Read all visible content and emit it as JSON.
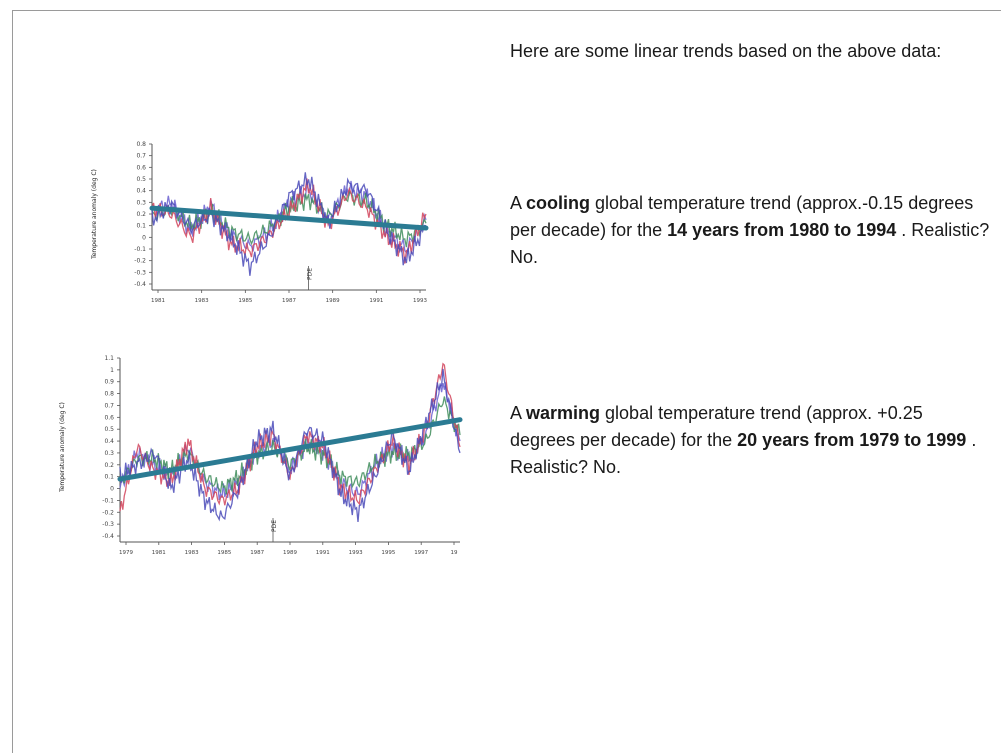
{
  "slide": {
    "intro_text": "Here are some linear trends based on the above data:",
    "cooling": {
      "p1": "A ",
      "bold1": "cooling",
      "p2": " global temperature trend (approx.-0.15 degrees per decade) for the ",
      "bold2": "14 years from 1980 to 1994",
      "p3": "  . Realistic? No."
    },
    "warming": {
      "p1": "A ",
      "bold1": "warming",
      "p2": " global temperature trend (approx. +0.25 degrees per decade) for the ",
      "bold2": "20 years from 1979 to 1999",
      "p3": "  . Realistic? No."
    }
  },
  "colors": {
    "trend": "#2b7b93",
    "axis": "#555555",
    "series": [
      "#6a5fd0",
      "#3f8d5c",
      "#d2445c",
      "#4a4ab8"
    ]
  },
  "chart_data": [
    {
      "type": "line",
      "ylabel": "Temperature anomaly (deg C)",
      "ylim": [
        -0.4,
        0.8
      ],
      "yticks": [
        "0.8",
        "0.7",
        "0.6",
        "0.5",
        "0.4",
        "0.3",
        "0.2",
        "0.1",
        "0",
        "-0.1",
        "-0.2",
        "-0.3",
        "-0.4"
      ],
      "xlim": [
        1980,
        1994
      ],
      "xticks": [
        "1981",
        "1983",
        "1985",
        "1987",
        "1989",
        "1991",
        "1993"
      ],
      "annotation": "PDE",
      "annotation_x": 1988,
      "trend": {
        "x": [
          1980,
          1994
        ],
        "y": [
          0.25,
          0.08
        ]
      },
      "series": [
        {
          "x": [
            1980,
            1981,
            1982,
            1983,
            1984,
            1985,
            1986,
            1987,
            1988,
            1989,
            1990,
            1991,
            1992,
            1993,
            1994
          ],
          "y": [
            0.22,
            0.3,
            0.05,
            0.28,
            0.02,
            -0.08,
            0.05,
            0.3,
            0.4,
            0.15,
            0.42,
            0.35,
            0.05,
            -0.1,
            0.15
          ]
        },
        {
          "x": [
            1980,
            1981,
            1982,
            1983,
            1984,
            1985,
            1986,
            1987,
            1988,
            1989,
            1990,
            1991,
            1992,
            1993,
            1994
          ],
          "y": [
            0.18,
            0.25,
            0.1,
            0.22,
            0.06,
            -0.02,
            0.08,
            0.25,
            0.33,
            0.18,
            0.36,
            0.3,
            0.1,
            -0.02,
            0.12
          ]
        },
        {
          "x": [
            1980,
            1981,
            1982,
            1983,
            1984,
            1985,
            1986,
            1987,
            1988,
            1989,
            1990,
            1991,
            1992,
            1993,
            1994
          ],
          "y": [
            0.25,
            0.2,
            0.0,
            0.25,
            -0.05,
            -0.12,
            0.02,
            0.22,
            0.45,
            0.1,
            0.38,
            0.25,
            0.0,
            -0.15,
            0.2
          ]
        },
        {
          "x": [
            1980,
            1981,
            1982,
            1983,
            1984,
            1985,
            1986,
            1987,
            1988,
            1989,
            1990,
            1991,
            1992,
            1993,
            1994
          ],
          "y": [
            0.15,
            0.28,
            0.08,
            0.2,
            0.0,
            -0.25,
            0.0,
            0.35,
            0.5,
            0.12,
            0.45,
            0.4,
            0.05,
            -0.2,
            0.1
          ]
        }
      ]
    },
    {
      "type": "line",
      "ylabel": "Temperature anomaly (deg C)",
      "ylim": [
        -0.4,
        1.1
      ],
      "yticks": [
        "1.1",
        "1",
        "0.9",
        "0.8",
        "0.7",
        "0.6",
        "0.5",
        "0.4",
        "0.3",
        "0.2",
        "0.1",
        "0",
        "-0.1",
        "-0.2",
        "-0.3",
        "-0.4"
      ],
      "xlim": [
        1979,
        1999
      ],
      "xticks": [
        "1979",
        "1981",
        "1983",
        "1985",
        "1987",
        "1989",
        "1991",
        "1993",
        "1995",
        "1997",
        "19"
      ],
      "annotation": "PDE",
      "annotation_x": 1988,
      "trend": {
        "x": [
          1979,
          1999
        ],
        "y": [
          0.08,
          0.58
        ]
      },
      "series": [
        {
          "x": [
            1979,
            1980,
            1981,
            1982,
            1983,
            1984,
            1985,
            1986,
            1987,
            1988,
            1989,
            1990,
            1991,
            1992,
            1993,
            1994,
            1995,
            1996,
            1997,
            1998,
            1999
          ],
          "y": [
            0.0,
            0.3,
            0.2,
            0.1,
            0.35,
            0.05,
            -0.05,
            0.05,
            0.3,
            0.4,
            0.15,
            0.4,
            0.3,
            0.05,
            -0.05,
            0.2,
            0.35,
            0.25,
            0.45,
            0.9,
            0.4
          ]
        },
        {
          "x": [
            1979,
            1980,
            1981,
            1982,
            1983,
            1984,
            1985,
            1986,
            1987,
            1988,
            1989,
            1990,
            1991,
            1992,
            1993,
            1994,
            1995,
            1996,
            1997,
            1998,
            1999
          ],
          "y": [
            0.05,
            0.25,
            0.25,
            0.15,
            0.3,
            0.1,
            0.0,
            0.1,
            0.28,
            0.35,
            0.2,
            0.35,
            0.28,
            0.1,
            0.05,
            0.22,
            0.3,
            0.28,
            0.4,
            0.75,
            0.45
          ]
        },
        {
          "x": [
            1979,
            1980,
            1981,
            1982,
            1983,
            1984,
            1985,
            1986,
            1987,
            1988,
            1989,
            1990,
            1991,
            1992,
            1993,
            1994,
            1995,
            1996,
            1997,
            1998,
            1999
          ],
          "y": [
            -0.2,
            0.35,
            0.15,
            0.05,
            0.4,
            0.0,
            -0.1,
            0.0,
            0.35,
            0.45,
            0.1,
            0.45,
            0.35,
            0.0,
            -0.1,
            0.15,
            0.4,
            0.2,
            0.5,
            1.05,
            0.35
          ]
        },
        {
          "x": [
            1979,
            1980,
            1981,
            1982,
            1983,
            1984,
            1985,
            1986,
            1987,
            1988,
            1989,
            1990,
            1991,
            1992,
            1993,
            1994,
            1995,
            1996,
            1997,
            1998,
            1999
          ],
          "y": [
            0.1,
            0.2,
            0.3,
            0.0,
            0.25,
            -0.1,
            -0.25,
            0.0,
            0.4,
            0.5,
            0.1,
            0.5,
            0.4,
            -0.05,
            -0.2,
            0.1,
            0.45,
            0.15,
            0.55,
            0.95,
            0.3
          ]
        }
      ]
    }
  ]
}
